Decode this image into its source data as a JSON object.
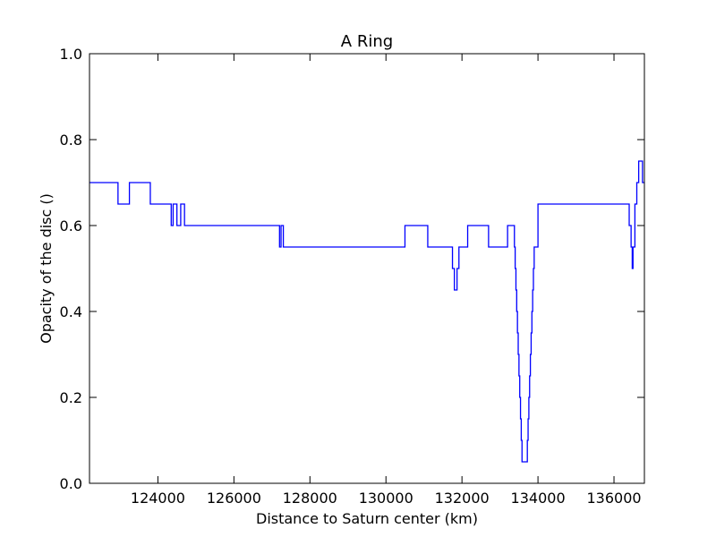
{
  "chart_data": {
    "type": "line",
    "title": "A Ring",
    "xlabel": "Distance to Saturn center (km)",
    "ylabel": "Opacity of the disc ()",
    "xlim": [
      122200,
      136800
    ],
    "ylim": [
      0.0,
      1.0
    ],
    "x_ticks": [
      124000,
      126000,
      128000,
      130000,
      132000,
      134000,
      136000
    ],
    "x_tick_labels": [
      "124000",
      "126000",
      "128000",
      "130000",
      "132000",
      "134000",
      "136000"
    ],
    "y_ticks": [
      0.0,
      0.2,
      0.4,
      0.6,
      0.8,
      1.0
    ],
    "y_tick_labels": [
      "0.0",
      "0.2",
      "0.4",
      "0.6",
      "0.8",
      "1.0"
    ],
    "grid": false,
    "line_color": "#0000ff",
    "series": [
      {
        "step": "post",
        "x": [
          122200,
          122950,
          123250,
          123800,
          124350,
          124400,
          124500,
          124600,
          124700,
          127200,
          127240,
          127300,
          130500,
          131100,
          131750,
          131800,
          131870,
          131920,
          132150,
          132700,
          133200,
          133380,
          133400,
          133420,
          133440,
          133460,
          133480,
          133500,
          133520,
          133540,
          133560,
          133580,
          133600,
          133620,
          133640,
          133660,
          133720,
          133740,
          133760,
          133780,
          133800,
          133820,
          133840,
          133860,
          133880,
          133900,
          134000,
          136400,
          136450,
          136480,
          136500,
          136550,
          136600,
          136650,
          136750
        ],
        "y": [
          0.7,
          0.65,
          0.7,
          0.65,
          0.6,
          0.65,
          0.6,
          0.65,
          0.6,
          0.55,
          0.6,
          0.55,
          0.6,
          0.55,
          0.5,
          0.45,
          0.5,
          0.55,
          0.6,
          0.55,
          0.6,
          0.55,
          0.5,
          0.45,
          0.4,
          0.35,
          0.3,
          0.25,
          0.2,
          0.15,
          0.1,
          0.05,
          0.05,
          0.05,
          0.05,
          0.05,
          0.1,
          0.15,
          0.2,
          0.25,
          0.3,
          0.35,
          0.4,
          0.45,
          0.5,
          0.55,
          0.65,
          0.6,
          0.55,
          0.5,
          0.55,
          0.65,
          0.7,
          0.75,
          0.7
        ]
      }
    ]
  }
}
